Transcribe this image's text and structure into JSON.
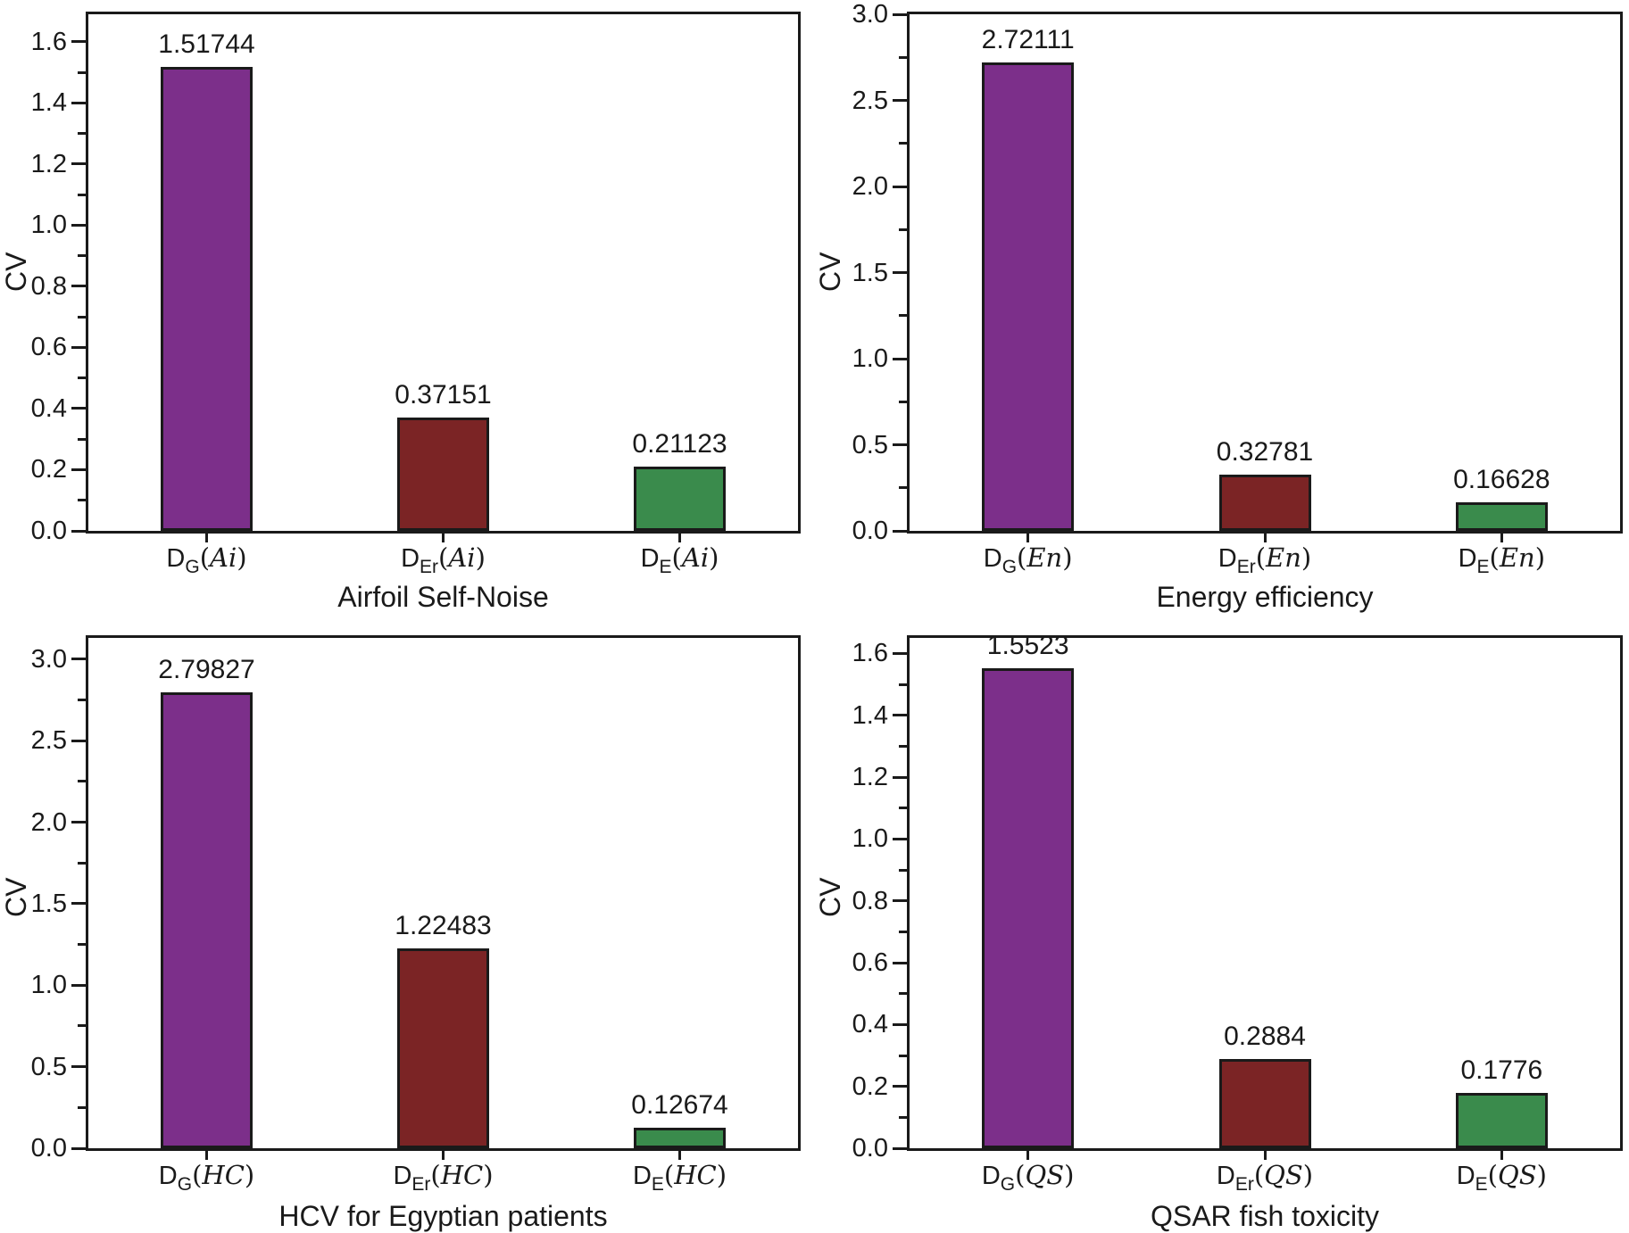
{
  "figure": {
    "ylabel": "CV"
  },
  "colors": {
    "bars": [
      "#7C2F8A",
      "#7B2425",
      "#3A8B4C"
    ],
    "axis": "#1a1a1a",
    "background": "#ffffff"
  },
  "chart_data": [
    {
      "type": "bar",
      "title": "Airfoil Self-Noise",
      "ylabel": "CV",
      "categories": [
        {
          "base": "D",
          "sub": "G",
          "open": "(",
          "ds": "Ai",
          "close": ")"
        },
        {
          "base": "D",
          "sub": "Er",
          "open": "(",
          "ds": "Ai",
          "close": ")"
        },
        {
          "base": "D",
          "sub": "E",
          "open": "(",
          "ds": "Ai",
          "close": ")"
        }
      ],
      "values": [
        1.51744,
        0.37151,
        0.21123
      ],
      "value_labels": [
        "1.51744",
        "0.37151",
        "0.21123"
      ],
      "yaxis": {
        "min": 0,
        "max": 1.69,
        "ticks": [
          0,
          0.2,
          0.4,
          0.6,
          0.8,
          1.0,
          1.2,
          1.4,
          1.6
        ],
        "tick_labels": [
          "0.0",
          "0.2",
          "0.4",
          "0.6",
          "0.8",
          "1.0",
          "1.2",
          "1.4",
          "1.6"
        ]
      },
      "grid": false,
      "legend": null
    },
    {
      "type": "bar",
      "title": "Energy efficiency",
      "ylabel": "CV",
      "categories": [
        {
          "base": "D",
          "sub": "G",
          "open": "(",
          "ds": "En",
          "close": ")"
        },
        {
          "base": "D",
          "sub": "Er",
          "open": "(",
          "ds": "En",
          "close": ")"
        },
        {
          "base": "D",
          "sub": "E",
          "open": "(",
          "ds": "En",
          "close": ")"
        }
      ],
      "values": [
        2.72111,
        0.32781,
        0.16628
      ],
      "value_labels": [
        "2.72111",
        "0.32781",
        "0.16628"
      ],
      "yaxis": {
        "min": 0,
        "max": 3.0,
        "ticks": [
          0,
          0.5,
          1.0,
          1.5,
          2.0,
          2.5,
          3.0
        ],
        "tick_labels": [
          "0.0",
          "0.5",
          "1.0",
          "1.5",
          "2.0",
          "2.5",
          "3.0"
        ]
      },
      "grid": false,
      "legend": null
    },
    {
      "type": "bar",
      "title": "HCV for Egyptian patients",
      "ylabel": "CV",
      "categories": [
        {
          "base": "D",
          "sub": "G",
          "open": "(",
          "ds": "HC",
          "close": ")"
        },
        {
          "base": "D",
          "sub": "Er",
          "open": "(",
          "ds": "HC",
          "close": ")"
        },
        {
          "base": "D",
          "sub": "E",
          "open": "(",
          "ds": "HC",
          "close": ")"
        }
      ],
      "values": [
        2.79827,
        1.22483,
        0.12674
      ],
      "value_labels": [
        "2.79827",
        "1.22483",
        "0.12674"
      ],
      "yaxis": {
        "min": 0,
        "max": 3.13,
        "ticks": [
          0,
          0.5,
          1.0,
          1.5,
          2.0,
          2.5,
          3.0
        ],
        "tick_labels": [
          "0.0",
          "0.5",
          "1.0",
          "1.5",
          "2.0",
          "2.5",
          "3.0"
        ]
      },
      "grid": false,
      "legend": null
    },
    {
      "type": "bar",
      "title": "QSAR fish toxicity",
      "ylabel": "CV",
      "categories": [
        {
          "base": "D",
          "sub": "G",
          "open": "(",
          "ds": "QS",
          "close": ")"
        },
        {
          "base": "D",
          "sub": "Er",
          "open": "(",
          "ds": "QS",
          "close": ")"
        },
        {
          "base": "D",
          "sub": "E",
          "open": "(",
          "ds": "QS",
          "close": ")"
        }
      ],
      "values": [
        1.5523,
        0.2884,
        0.1776
      ],
      "value_labels": [
        "1.5523",
        "0.2884",
        "0.1776"
      ],
      "yaxis": {
        "min": 0,
        "max": 1.65,
        "ticks": [
          0,
          0.2,
          0.4,
          0.6,
          0.8,
          1.0,
          1.2,
          1.4,
          1.6
        ],
        "tick_labels": [
          "0.0",
          "0.2",
          "0.4",
          "0.6",
          "0.8",
          "1.0",
          "1.2",
          "1.4",
          "1.6"
        ]
      },
      "grid": false,
      "legend": null
    }
  ]
}
